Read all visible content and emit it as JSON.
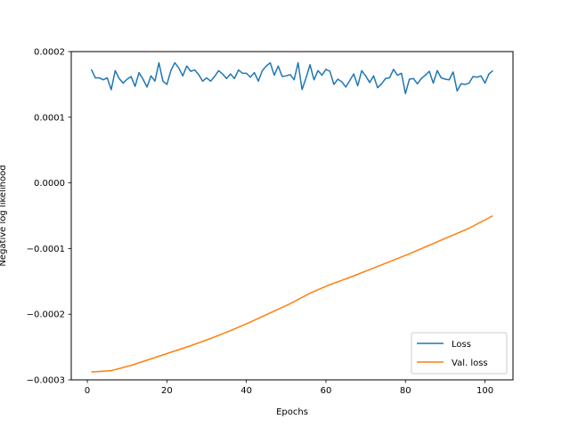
{
  "chart_data": {
    "type": "line",
    "title": "",
    "xlabel": "Epochs",
    "ylabel": "Negative log likelihood",
    "xlim": [
      -4.05,
      107.05
    ],
    "ylim": [
      -0.0003,
      0.0002
    ],
    "xticks": [
      0,
      20,
      40,
      60,
      80,
      100
    ],
    "xtick_labels": [
      "0",
      "20",
      "40",
      "60",
      "80",
      "100"
    ],
    "yticks": [
      -0.0003,
      -0.0002,
      -0.0001,
      0.0,
      0.0001,
      0.0002
    ],
    "ytick_labels": [
      "−0.0003",
      "−0.0002",
      "−0.0001",
      "0.0000",
      "0.0001",
      "0.0002"
    ],
    "grid": false,
    "legend_position": "lower-right",
    "series": [
      {
        "name": "Loss",
        "color": "#1f77b4",
        "x": [
          1,
          2,
          3,
          4,
          5,
          6,
          7,
          8,
          9,
          10,
          11,
          12,
          13,
          14,
          15,
          16,
          17,
          18,
          19,
          20,
          21,
          22,
          23,
          24,
          25,
          26,
          27,
          28,
          29,
          30,
          31,
          32,
          33,
          34,
          35,
          36,
          37,
          38,
          39,
          40,
          41,
          42,
          43,
          44,
          45,
          46,
          47,
          48,
          49,
          50,
          51,
          52,
          53,
          54,
          55,
          56,
          57,
          58,
          59,
          60,
          61,
          62,
          63,
          64,
          65,
          66,
          67,
          68,
          69,
          70,
          71,
          72,
          73,
          74,
          75,
          76,
          77,
          78,
          79,
          80,
          81,
          82,
          83,
          84,
          85,
          86,
          87,
          88,
          89,
          90,
          91,
          92,
          93,
          94,
          95,
          96,
          97,
          98,
          99,
          100,
          101,
          102
        ],
        "y": [
          0.000173,
          0.00016,
          0.00016,
          0.000157,
          0.00016,
          0.000142,
          0.000171,
          0.000159,
          0.000152,
          0.000158,
          0.000162,
          0.000147,
          0.000168,
          0.000158,
          0.000146,
          0.000163,
          0.000155,
          0.000183,
          0.000155,
          0.00015,
          0.000171,
          0.000183,
          0.000175,
          0.000163,
          0.000178,
          0.00017,
          0.000172,
          0.000165,
          0.000155,
          0.00016,
          0.000155,
          0.000162,
          0.000171,
          0.000166,
          0.000159,
          0.000166,
          0.000159,
          0.000172,
          0.000167,
          0.000167,
          0.000161,
          0.000168,
          0.000155,
          0.000171,
          0.000178,
          0.000183,
          0.000164,
          0.000178,
          0.000162,
          0.000163,
          0.000165,
          0.000157,
          0.000183,
          0.000142,
          0.00016,
          0.00018,
          0.000157,
          0.000171,
          0.000164,
          0.000173,
          0.00017,
          0.00015,
          0.000158,
          0.000154,
          0.000146,
          0.000156,
          0.000166,
          0.000148,
          0.000171,
          0.000163,
          0.000153,
          0.000163,
          0.000145,
          0.000151,
          0.000159,
          0.00016,
          0.000173,
          0.000164,
          0.000167,
          0.000136,
          0.000158,
          0.000159,
          0.000151,
          0.000159,
          0.000164,
          0.00017,
          0.000152,
          0.000171,
          0.00016,
          0.000158,
          0.000157,
          0.000169,
          0.00014,
          0.000151,
          0.00015,
          0.000152,
          0.000162,
          0.000161,
          0.000163,
          0.000152,
          0.000166,
          0.000171
        ]
      },
      {
        "name": "Val. loss",
        "color": "#ff7f0e",
        "x": [
          1,
          6,
          11,
          16,
          21,
          26,
          31,
          36,
          41,
          46,
          51,
          56,
          61,
          66,
          71,
          76,
          81,
          86,
          91,
          96,
          102
        ],
        "y": [
          -0.000288,
          -0.000286,
          -0.000278,
          -0.000268,
          -0.000258,
          -0.000248,
          -0.000237,
          -0.000225,
          -0.000212,
          -0.000198,
          -0.000184,
          -0.000168,
          -0.000155,
          -0.000144,
          -0.000132,
          -0.00012,
          -0.000108,
          -9.5e-05,
          -8.2e-05,
          -6.9e-05,
          -5e-05
        ]
      }
    ]
  }
}
